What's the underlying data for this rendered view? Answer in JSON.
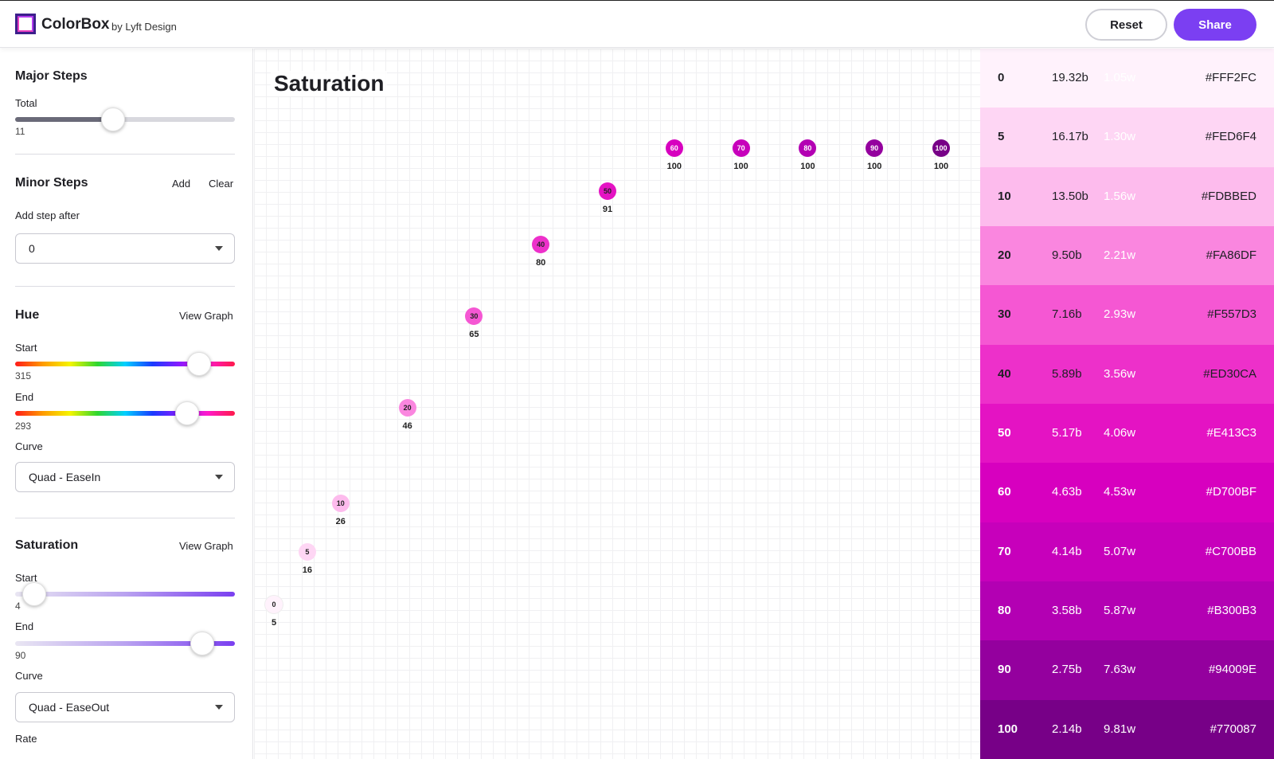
{
  "header": {
    "brand": "ColorBox",
    "byline": "by Lyft Design",
    "reset_label": "Reset",
    "share_label": "Share"
  },
  "sidebar": {
    "major_steps": {
      "title": "Major Steps",
      "total_label": "Total",
      "total_value": "11"
    },
    "minor_steps": {
      "title": "Minor Steps",
      "add_label": "Add",
      "clear_label": "Clear",
      "add_after_label": "Add step after",
      "add_after_value": "0"
    },
    "hue": {
      "title": "Hue",
      "view_graph": "View Graph",
      "start_label": "Start",
      "start_value": "315",
      "end_label": "End",
      "end_value": "293",
      "curve_label": "Curve",
      "curve_value": "Quad - EaseIn"
    },
    "saturation": {
      "title": "Saturation",
      "view_graph": "View Graph",
      "start_label": "Start",
      "start_value": "4",
      "end_label": "End",
      "end_value": "90",
      "curve_label": "Curve",
      "curve_value": "Quad - EaseOut",
      "rate_label": "Rate"
    }
  },
  "graph": {
    "title": "Saturation",
    "points": [
      {
        "step": "0",
        "value": "5",
        "color": "#FFF2FC",
        "text": "#222"
      },
      {
        "step": "5",
        "value": "16",
        "color": "#FED6F4",
        "text": "#222"
      },
      {
        "step": "10",
        "value": "26",
        "color": "#FDBBED",
        "text": "#222"
      },
      {
        "step": "20",
        "value": "46",
        "color": "#FA86DF",
        "text": "#222"
      },
      {
        "step": "30",
        "value": "65",
        "color": "#F557D3",
        "text": "#222"
      },
      {
        "step": "40",
        "value": "80",
        "color": "#ED30CA",
        "text": "#222"
      },
      {
        "step": "50",
        "value": "91",
        "color": "#E413C3",
        "text": "#222"
      },
      {
        "step": "60",
        "value": "100",
        "color": "#D700BF",
        "text": "#fff"
      },
      {
        "step": "70",
        "value": "100",
        "color": "#C700BB",
        "text": "#fff"
      },
      {
        "step": "80",
        "value": "100",
        "color": "#B300B3",
        "text": "#fff"
      },
      {
        "step": "90",
        "value": "100",
        "color": "#94009E",
        "text": "#fff"
      },
      {
        "step": "100",
        "value": "100",
        "color": "#770087",
        "text": "#fff"
      }
    ]
  },
  "swatches": [
    {
      "step": "0",
      "b": "19.32b",
      "w": "1.05w",
      "hex": "#FFF2FC",
      "text": "#1f1f24",
      "wtext": "#ffffff"
    },
    {
      "step": "5",
      "b": "16.17b",
      "w": "1.30w",
      "hex": "#FED6F4",
      "text": "#1f1f24",
      "wtext": "#ffffff"
    },
    {
      "step": "10",
      "b": "13.50b",
      "w": "1.56w",
      "hex": "#FDBBED",
      "text": "#1f1f24",
      "wtext": "#ffffff"
    },
    {
      "step": "20",
      "b": "9.50b",
      "w": "2.21w",
      "hex": "#FA86DF",
      "text": "#1f1f24",
      "wtext": "#ffffff"
    },
    {
      "step": "30",
      "b": "7.16b",
      "w": "2.93w",
      "hex": "#F557D3",
      "text": "#1f1f24",
      "wtext": "#ffffff"
    },
    {
      "step": "40",
      "b": "5.89b",
      "w": "3.56w",
      "hex": "#ED30CA",
      "text": "#1f1f24",
      "wtext": "#ffffff"
    },
    {
      "step": "50",
      "b": "5.17b",
      "w": "4.06w",
      "hex": "#E413C3",
      "text": "#ffffff",
      "wtext": "#ffffff"
    },
    {
      "step": "60",
      "b": "4.63b",
      "w": "4.53w",
      "hex": "#D700BF",
      "text": "#ffffff",
      "wtext": "#ffffff"
    },
    {
      "step": "70",
      "b": "4.14b",
      "w": "5.07w",
      "hex": "#C700BB",
      "text": "#ffffff",
      "wtext": "#ffffff"
    },
    {
      "step": "80",
      "b": "3.58b",
      "w": "5.87w",
      "hex": "#B300B3",
      "text": "#ffffff",
      "wtext": "#ffffff"
    },
    {
      "step": "90",
      "b": "2.75b",
      "w": "7.63w",
      "hex": "#94009E",
      "text": "#ffffff",
      "wtext": "#ffffff"
    },
    {
      "step": "100",
      "b": "2.14b",
      "w": "9.81w",
      "hex": "#770087",
      "text": "#ffffff",
      "wtext": "#ffffff"
    }
  ],
  "colors": {
    "accent": "#7b3ff2"
  }
}
